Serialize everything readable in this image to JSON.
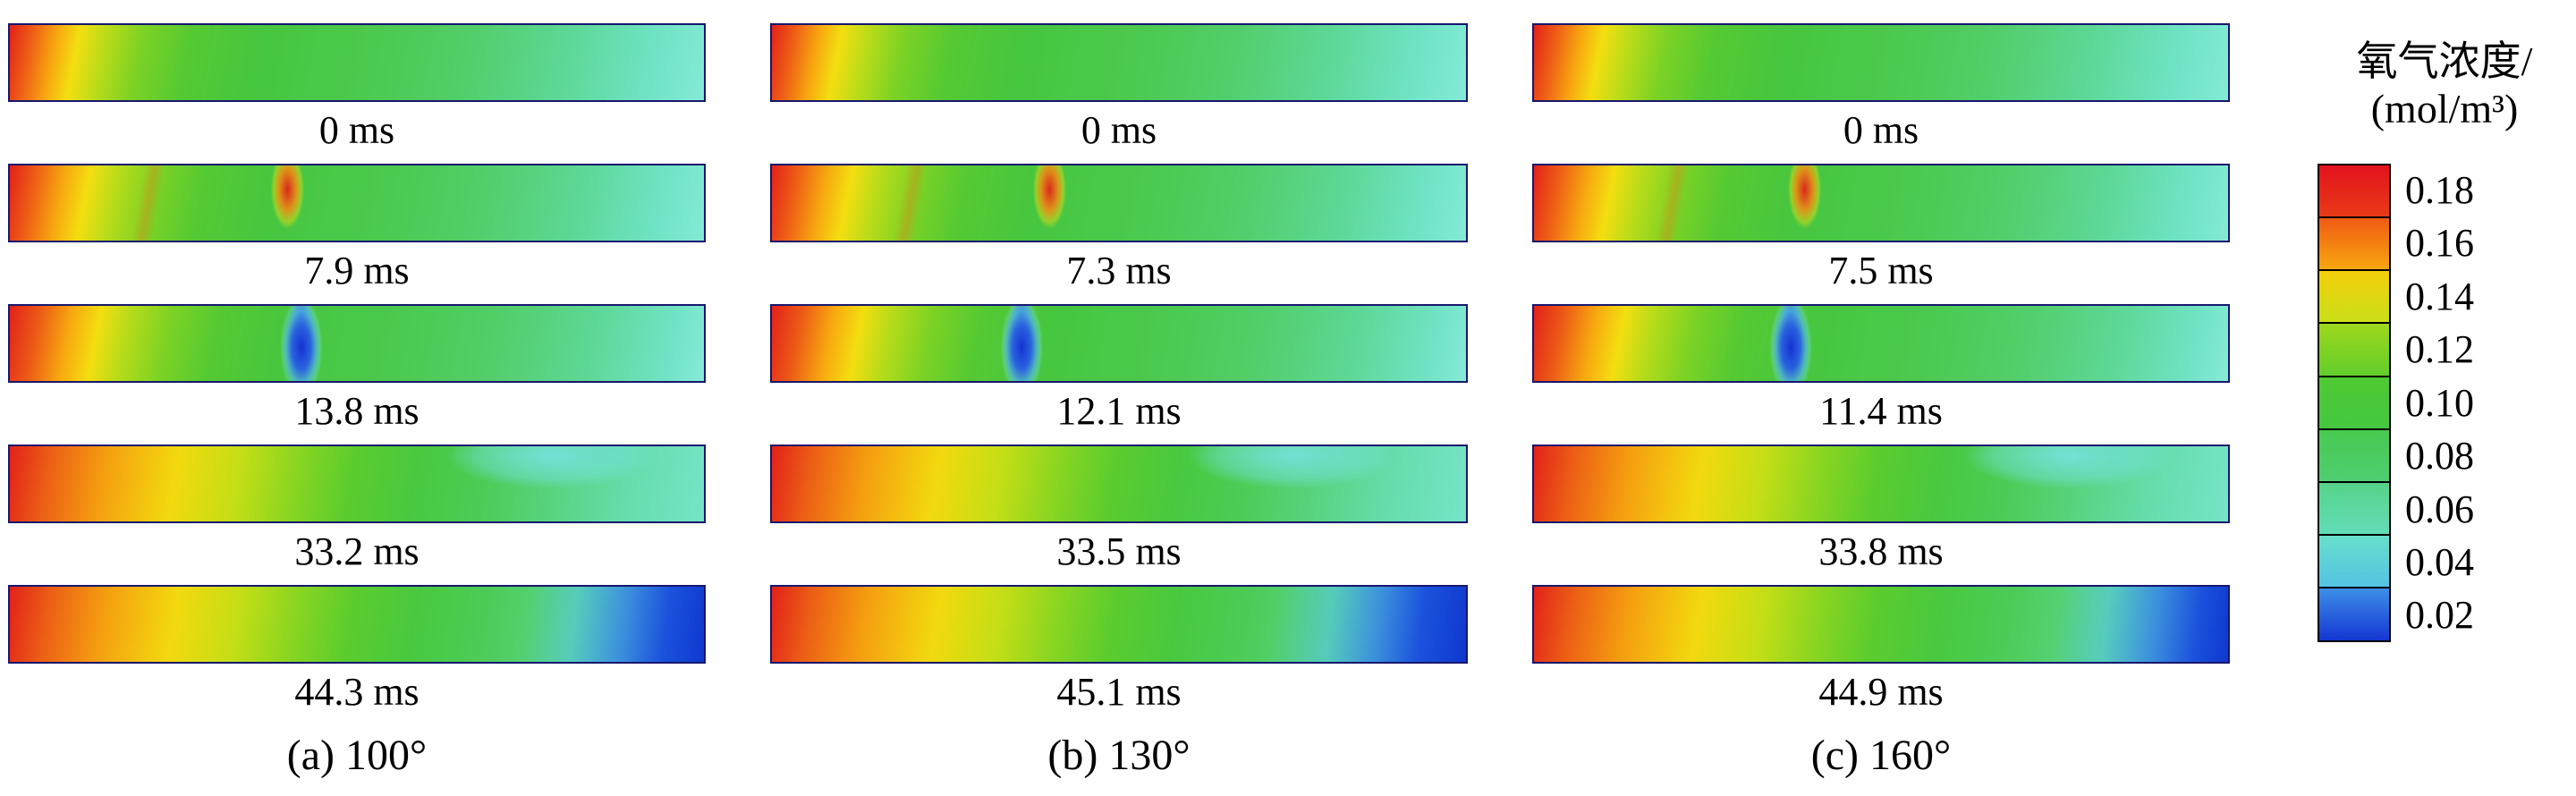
{
  "chart_data": {
    "type": "heatmap",
    "title": "",
    "legend_position": "right",
    "panels": [
      {
        "caption": "(a) 100°",
        "frames": [
          {
            "time": "0 ms",
            "bg": "background:linear-gradient(101deg,#e2211a 0%,#ee6015 3.5%,#f7a90f 7%,#f3de10 10%,#b8dc19 14%,#7cd224 19%,#54c933 26%,#47c63f 36%,#4cc94f 52%,#53ce6b 66%,#5dd795 79%,#6ee2c2 91%,#84ead6 100%)"
          },
          {
            "time": "7.9 ms",
            "bg": "background:radial-gradient(ellipse 22px 52px at 40% 32%,rgba(226,33,26,0.95) 0%,rgba(246,140,18,0.85) 45%,rgba(244,222,16,0.45) 70%,rgba(0,0,0,0) 85%),linear-gradient(100deg,rgba(0,0,0,0) 19%,rgba(238,120,21,0.35) 20.5%,rgba(0,0,0,0) 22%),linear-gradient(101deg,#e2211a 0%,#ee6015 4%,#f7a90f 8%,#f3de10 11.5%,#b8dc19 15.5%,#7cd224 21%,#54c933 28%,#47c63f 38%,#4cc94f 54%,#53ce6b 68%,#5dd795 81%,#6ee2c2 92%,#84ead6 100%)"
          },
          {
            "time": "13.8 ms",
            "bg": "background:radial-gradient(ellipse 26px 62px at 42% 55%,#1433d2 0%,#2a62df 40%,rgba(80,180,230,0.75) 65%,rgba(120,220,230,0.35) 80%,rgba(0,0,0,0) 92%),radial-gradient(ellipse 14px 40px at 42% 12%,rgba(30,80,215,0.9) 0%,rgba(60,150,225,0.5) 60%,rgba(0,0,0,0) 85%),linear-gradient(101deg,#e2211a 0%,#ec5b16 4.5%,#f7a90f 9%,#f3de10 13%,#b8dc19 17%,#7cd224 23%,#54c933 30%,#47c63f 40%,#4cc94f 56%,#53ce6b 70%,#5dd795 83%,#70e2c4 94%,#86ead8 100%)"
          },
          {
            "time": "33.2 ms",
            "bg": "background:radial-gradient(ellipse 150px 48px at 78% 12%,rgba(118,226,224,0.9) 0%,rgba(118,226,224,0.45) 55%,rgba(0,0,0,0) 78%),linear-gradient(99deg,#e2211a 0%,#ec5f15 6%,#f59f10 14%,#f2d90e 24%,#c4de15 33%,#8ad521 41%,#5bcc2e 49%,#49c83f 58%,#4ecb57 68%,#58d37f 78%,#65dcaa 88%,#76e4c8 100%)"
          },
          {
            "time": "44.3 ms",
            "bg": "background:linear-gradient(97deg,rgba(0,0,0,0) 74%,rgba(80,195,225,0.55) 81%,rgba(52,130,228,0.85) 88%,#1b52dc 94%,#0f38cf 100%),linear-gradient(99deg,#e2211a 0%,#ec5f15 6%,#f59f10 14%,#f2d90e 24%,#c4de15 33%,#8ad521 41%,#5bcc2e 49%,#49c83f 58%,#4ecb57 68%,#58d37f 78%,#65dcaa 88%,#72e2c6 100%)"
          }
        ]
      },
      {
        "caption": "(b) 130°",
        "frames": [
          {
            "time": "0 ms",
            "bg": "background:linear-gradient(101deg,#e2211a 0%,#ee6015 3.5%,#f7a90f 7%,#f3de10 10%,#b8dc19 14%,#7cd224 19%,#54c933 26%,#47c63f 36%,#4cc94f 52%,#53ce6b 66%,#5dd795 79%,#6ee2c2 91%,#84ead6 100%)"
          },
          {
            "time": "7.3 ms",
            "bg": "background:radial-gradient(ellipse 22px 52px at 40% 32%,rgba(226,33,26,0.95) 0%,rgba(246,140,18,0.85) 45%,rgba(244,222,16,0.45) 70%,rgba(0,0,0,0) 85%),linear-gradient(100deg,rgba(0,0,0,0) 19%,rgba(238,120,21,0.35) 20.5%,rgba(0,0,0,0) 22%),linear-gradient(101deg,#e2211a 0%,#ee6015 4%,#f7a90f 8%,#f3de10 11.5%,#b8dc19 15.5%,#7cd224 21%,#54c933 28%,#47c63f 38%,#4cc94f 54%,#53ce6b 68%,#5dd795 81%,#6ee2c2 92%,#84ead6 100%)"
          },
          {
            "time": "12.1 ms",
            "bg": "background:radial-gradient(ellipse 26px 62px at 36% 55%,#1433d2 0%,#2a62df 40%,rgba(80,180,230,0.75) 65%,rgba(120,220,230,0.35) 80%,rgba(0,0,0,0) 92%),radial-gradient(ellipse 14px 40px at 36% 12%,rgba(30,80,215,0.9) 0%,rgba(60,150,225,0.5) 60%,rgba(0,0,0,0) 85%),linear-gradient(101deg,#e2211a 0%,#ec5b16 4.5%,#f7a90f 9%,#f3de10 13%,#b8dc19 17%,#7cd224 23%,#54c933 30%,#47c63f 40%,#4cc94f 56%,#53ce6b 70%,#5dd795 83%,#70e2c4 94%,#86ead8 100%)"
          },
          {
            "time": "33.5 ms",
            "bg": "background:radial-gradient(ellipse 150px 48px at 75% 12%,rgba(118,226,224,0.9) 0%,rgba(118,226,224,0.45) 55%,rgba(0,0,0,0) 78%),linear-gradient(99deg,#e2211a 0%,#ec5f15 6%,#f59f10 14%,#f2d90e 24%,#c4de15 33%,#8ad521 41%,#5bcc2e 49%,#49c83f 58%,#4ecb57 68%,#58d37f 78%,#65dcaa 88%,#76e4c8 100%)"
          },
          {
            "time": "45.1 ms",
            "bg": "background:linear-gradient(97deg,rgba(0,0,0,0) 72%,rgba(80,195,225,0.55) 80%,rgba(52,130,228,0.85) 87%,#1b52dc 93%,#0f38cf 100%),linear-gradient(99deg,#e2211a 0%,#ec5f15 6%,#f59f10 14%,#f2d90e 24%,#c4de15 33%,#8ad521 41%,#5bcc2e 49%,#49c83f 58%,#4ecb57 68%,#58d37f 78%,#65dcaa 88%,#72e2c6 100%)"
          }
        ]
      },
      {
        "caption": "(c) 160°",
        "frames": [
          {
            "time": "0 ms",
            "bg": "background:linear-gradient(101deg,#e2211a 0%,#ee6015 3.5%,#f7a90f 7%,#f3de10 10%,#b8dc19 14%,#7cd224 19%,#54c933 26%,#47c63f 36%,#4cc94f 52%,#53ce6b 66%,#5dd795 79%,#6ee2c2 91%,#84ead6 100%)"
          },
          {
            "time": "7.5 ms",
            "bg": "background:radial-gradient(ellipse 22px 52px at 39% 32%,rgba(226,33,26,0.95) 0%,rgba(246,140,18,0.85) 45%,rgba(244,222,16,0.45) 70%,rgba(0,0,0,0) 85%),linear-gradient(100deg,rgba(0,0,0,0) 19%,rgba(238,120,21,0.35) 20.5%,rgba(0,0,0,0) 22%),linear-gradient(101deg,#e2211a 0%,#ee6015 4%,#f7a90f 8%,#f3de10 11.5%,#b8dc19 15.5%,#7cd224 21%,#54c933 28%,#47c63f 38%,#4cc94f 54%,#53ce6b 68%,#5dd795 81%,#6ee2c2 92%,#84ead6 100%)"
          },
          {
            "time": "11.4 ms",
            "bg": "background:radial-gradient(ellipse 26px 62px at 37% 55%,#1433d2 0%,#2a62df 40%,rgba(80,180,230,0.75) 65%,rgba(120,220,230,0.35) 80%,rgba(0,0,0,0) 92%),radial-gradient(ellipse 14px 40px at 37% 12%,rgba(30,80,215,0.9) 0%,rgba(60,150,225,0.5) 60%,rgba(0,0,0,0) 85%),linear-gradient(101deg,#e2211a 0%,#ec5b16 4.5%,#f7a90f 9%,#f3de10 13%,#b8dc19 17%,#7cd224 23%,#54c933 30%,#47c63f 40%,#4cc94f 56%,#53ce6b 70%,#5dd795 83%,#70e2c4 94%,#86ead8 100%)"
          },
          {
            "time": "33.8 ms",
            "bg": "background:radial-gradient(ellipse 150px 48px at 77% 12%,rgba(118,226,224,0.9) 0%,rgba(118,226,224,0.45) 55%,rgba(0,0,0,0) 78%),linear-gradient(99deg,#e2211a 0%,#ec5f15 6%,#f59f10 14%,#f2d90e 24%,#c4de15 33%,#8ad521 41%,#5bcc2e 49%,#49c83f 58%,#4ecb57 68%,#58d37f 78%,#65dcaa 88%,#76e4c8 100%)"
          },
          {
            "time": "44.9 ms",
            "bg": "background:linear-gradient(97deg,rgba(0,0,0,0) 75%,rgba(80,195,225,0.55) 82%,rgba(52,130,228,0.85) 89%,#1b52dc 95%,#0f38cf 100%),linear-gradient(99deg,#e2211a 0%,#ec5f15 6%,#f59f10 14%,#f2d90e 24%,#c4de15 33%,#8ad521 41%,#5bcc2e 49%,#49c83f 58%,#4ecb57 68%,#58d37f 78%,#65dcaa 88%,#72e2c6 100%)"
          }
        ]
      }
    ],
    "colorbar": {
      "title_line1": "氧气浓度/",
      "title_line2": "(mol/m³)",
      "range": [
        0.02,
        0.18
      ],
      "ticks": [
        "0.18",
        "0.16",
        "0.14",
        "0.12",
        "0.10",
        "0.08",
        "0.06",
        "0.04",
        "0.02"
      ],
      "colors": [
        "#e2191c",
        "#f6870f",
        "#dfe015",
        "#84d321",
        "#47c737",
        "#49cb62",
        "#59d6a4",
        "#5cd0dd",
        "#3f9be6"
      ],
      "seg_styles": [
        "background:linear-gradient(180deg,#e2121c 0%,#e93a18 100%)",
        "background:linear-gradient(180deg,#ef5a14 0%,#f8a60e 100%)",
        "background:linear-gradient(180deg,#f4cf0c 0%,#c9df17 100%)",
        "background:linear-gradient(180deg,#9ed81d 0%,#63cd2b 100%)",
        "background:linear-gradient(180deg,#4fc933 0%,#45c741 100%)",
        "background:linear-gradient(180deg,#48c94f 0%,#4fce72 100%)",
        "background:linear-gradient(180deg,#56d388 0%,#63dcb8 100%)",
        "background:linear-gradient(180deg,#68dfcc 0%,#54c3e2 100%)",
        "background:linear-gradient(180deg,#3e8fe8 0%,#1436d2 100%)"
      ]
    }
  }
}
